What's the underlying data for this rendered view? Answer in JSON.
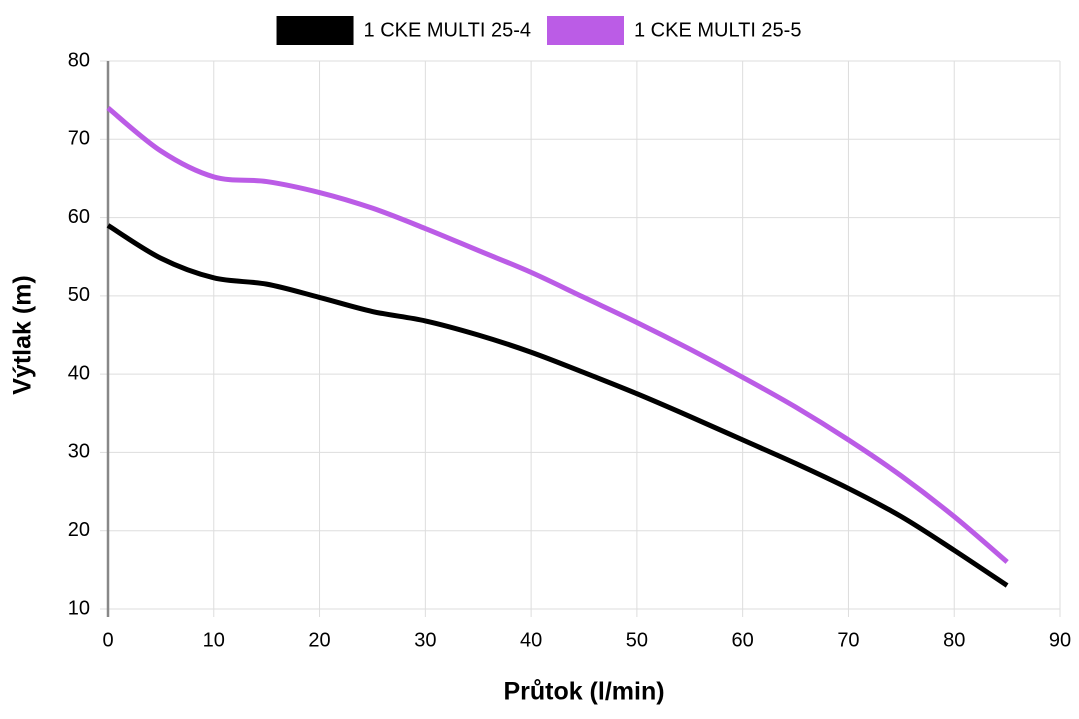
{
  "chart_data": {
    "type": "line",
    "x_label": "Průtok (l/min)",
    "y_label": "Výtlak (m)",
    "x": [
      0,
      5,
      10,
      15,
      20,
      25,
      30,
      35,
      40,
      45,
      50,
      55,
      60,
      65,
      70,
      75,
      80,
      85
    ],
    "series": [
      {
        "name": "1 CKE MULTI 25-4",
        "color": "#000000",
        "values": [
          59,
          54.8,
          52.3,
          51.5,
          49.8,
          48,
          46.8,
          45,
          42.8,
          40.2,
          37.5,
          34.6,
          31.6,
          28.6,
          25.4,
          21.8,
          17.5,
          13
        ]
      },
      {
        "name": "1 CKE MULTI 25-5",
        "color": "#bb5ce6",
        "values": [
          74,
          68.5,
          65.2,
          64.6,
          63.2,
          61.2,
          58.6,
          55.8,
          53,
          49.8,
          46.6,
          43.2,
          39.6,
          35.8,
          31.6,
          27,
          21.8,
          16
        ]
      }
    ],
    "xlim": [
      0,
      90
    ],
    "xticks": [
      0,
      10,
      20,
      30,
      40,
      50,
      60,
      70,
      80,
      90
    ],
    "ylim": [
      10,
      80
    ],
    "yticks": [
      10,
      20,
      30,
      40,
      50,
      60,
      70,
      80
    ],
    "grid": true,
    "legend": "top"
  }
}
